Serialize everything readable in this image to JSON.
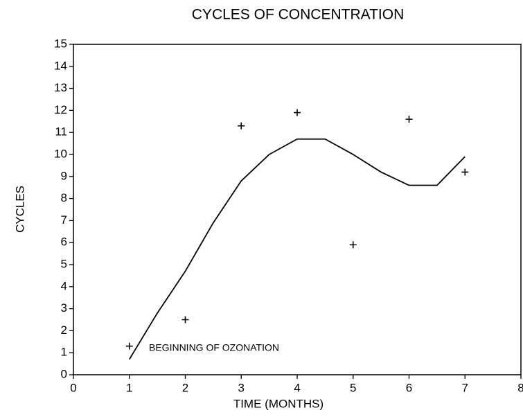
{
  "chart_data": {
    "type": "scatter",
    "title": "CYCLES OF CONCENTRATION",
    "xlabel": "TIME (MONTHS)",
    "ylabel": "CYCLES",
    "annotation": "BEGINNING OF OZONATION",
    "xlim": [
      0,
      8
    ],
    "ylim": [
      0,
      15
    ],
    "xticks": [
      0,
      1,
      2,
      3,
      4,
      5,
      6,
      7,
      8
    ],
    "yticks": [
      0,
      1,
      2,
      3,
      4,
      5,
      6,
      7,
      8,
      9,
      10,
      11,
      12,
      13,
      14,
      15
    ],
    "series": [
      {
        "style": "markers",
        "marker": "+",
        "color": "#000000",
        "x": [
          1,
          2,
          3,
          4,
          5,
          6,
          7
        ],
        "values": [
          1.3,
          2.5,
          11.3,
          11.9,
          5.9,
          11.6,
          9.2
        ]
      },
      {
        "style": "line",
        "color": "#000000",
        "x": [
          1,
          1.5,
          2,
          2.5,
          3,
          3.5,
          4,
          4.5,
          5,
          5.5,
          6,
          6.5,
          7
        ],
        "values": [
          0.7,
          2.8,
          4.7,
          6.9,
          8.8,
          10.0,
          10.7,
          10.7,
          10.0,
          9.2,
          8.6,
          8.6,
          9.9
        ]
      }
    ]
  }
}
